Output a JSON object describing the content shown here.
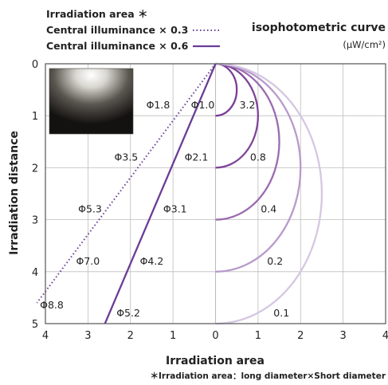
{
  "chart_data": {
    "type": "line",
    "legend": {
      "header": "Irradiation area ＊",
      "entries": [
        {
          "label": "Central illuminance × 0.3",
          "style": "dotted"
        },
        {
          "label": "Central illuminance × 0.6",
          "style": "solid"
        }
      ]
    },
    "title": "isophotometric curve",
    "unit": "(μW/cm²)",
    "xlabel": "Irradiation area",
    "ylabel": "Irradiation distance",
    "footnote": "＊Irradiation area：long diameter×Short diameter",
    "x_ticks": [
      "4",
      "3",
      "2",
      "1",
      "0",
      "1",
      "2",
      "3",
      "4"
    ],
    "y_ticks": [
      "0",
      "1",
      "2",
      "3",
      "4",
      "5"
    ],
    "xlim": [
      -4,
      4
    ],
    "ylim": [
      0,
      5
    ],
    "grid": true,
    "colors": {
      "line": "#6a3d96",
      "grid": "#bdbdbd",
      "axis": "#555555"
    },
    "isophotometric_curves": [
      {
        "value": "3.2",
        "radius": 0.5,
        "color": "#7a3c96"
      },
      {
        "value": "0.8",
        "radius": 1.0,
        "color": "#7e4499"
      },
      {
        "value": "0.4",
        "radius": 1.5,
        "color": "#9a6bb0"
      },
      {
        "value": "0.2",
        "radius": 2.0,
        "color": "#b89acb"
      },
      {
        "value": "0.1",
        "radius": 2.5,
        "color": "#d5c7e2"
      }
    ],
    "beam_lines": [
      {
        "name": "Central illuminance × 0.3",
        "style": "dotted",
        "points": [
          [
            0,
            0
          ],
          [
            -4.2,
            4.6
          ]
        ]
      },
      {
        "name": "Central illuminance × 0.6",
        "style": "solid",
        "points": [
          [
            0,
            0
          ],
          [
            -2.6,
            5.0
          ]
        ]
      }
    ],
    "diameter_labels": [
      {
        "text": "Φ1.0",
        "x": -0.3,
        "y": 0.8
      },
      {
        "text": "Φ1.8",
        "x": -1.35,
        "y": 0.8
      },
      {
        "text": "Φ2.1",
        "x": -0.45,
        "y": 1.8
      },
      {
        "text": "Φ3.5",
        "x": -2.1,
        "y": 1.8
      },
      {
        "text": "Φ3.1",
        "x": -0.95,
        "y": 2.8
      },
      {
        "text": "Φ5.3",
        "x": -2.95,
        "y": 2.8
      },
      {
        "text": "Φ4.2",
        "x": -1.5,
        "y": 3.8
      },
      {
        "text": "Φ7.0",
        "x": -3.0,
        "y": 3.8
      },
      {
        "text": "Φ5.2",
        "x": -2.05,
        "y": 4.8
      },
      {
        "text": "Φ8.8",
        "x": -3.85,
        "y": 4.65
      }
    ],
    "curve_labels": [
      {
        "text": "3.2",
        "x": 0.75,
        "y": 0.8
      },
      {
        "text": "0.8",
        "x": 1.0,
        "y": 1.8
      },
      {
        "text": "0.4",
        "x": 1.25,
        "y": 2.8
      },
      {
        "text": "0.2",
        "x": 1.4,
        "y": 3.8
      },
      {
        "text": "0.1",
        "x": 1.55,
        "y": 4.8
      }
    ]
  }
}
